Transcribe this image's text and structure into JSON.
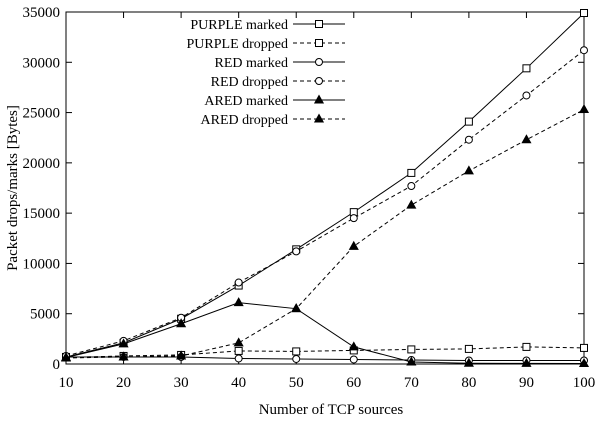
{
  "chart_data": {
    "type": "line",
    "title": "",
    "xlabel": "Number of TCP sources",
    "ylabel": "Packet drops/marks [Bytes]",
    "xlim": [
      10,
      100
    ],
    "ylim": [
      0,
      35000
    ],
    "x_ticks": [
      10,
      20,
      30,
      40,
      50,
      60,
      70,
      80,
      90,
      100
    ],
    "y_ticks": [
      0,
      5000,
      10000,
      15000,
      20000,
      25000,
      30000,
      35000
    ],
    "grid": false,
    "legend_position": "top-left",
    "x": [
      10,
      20,
      30,
      40,
      50,
      60,
      70,
      80,
      90,
      100
    ],
    "series": [
      {
        "name": "PURPLE marked",
        "marker": "square",
        "line": "solid",
        "values": [
          700,
          2100,
          4500,
          7800,
          11400,
          15100,
          19000,
          24100,
          29400,
          34900
        ]
      },
      {
        "name": "PURPLE dropped",
        "marker": "square",
        "line": "dashed",
        "values": [
          650,
          800,
          900,
          1300,
          1250,
          1350,
          1450,
          1500,
          1700,
          1600
        ]
      },
      {
        "name": "RED marked",
        "marker": "circle",
        "line": "solid",
        "values": [
          700,
          700,
          700,
          550,
          500,
          450,
          400,
          350,
          350,
          350
        ]
      },
      {
        "name": "RED dropped",
        "marker": "circle",
        "line": "dashed",
        "values": [
          800,
          2300,
          4600,
          8100,
          11200,
          14500,
          17700,
          22300,
          26700,
          31200
        ]
      },
      {
        "name": "ARED marked",
        "marker": "triangle",
        "line": "solid",
        "values": [
          650,
          2000,
          4000,
          6100,
          5500,
          1700,
          200,
          80,
          60,
          50
        ]
      },
      {
        "name": "ARED dropped",
        "marker": "triangle",
        "line": "dashed",
        "values": [
          600,
          700,
          800,
          2100,
          5500,
          11700,
          15800,
          19200,
          22300,
          25300
        ]
      }
    ]
  }
}
